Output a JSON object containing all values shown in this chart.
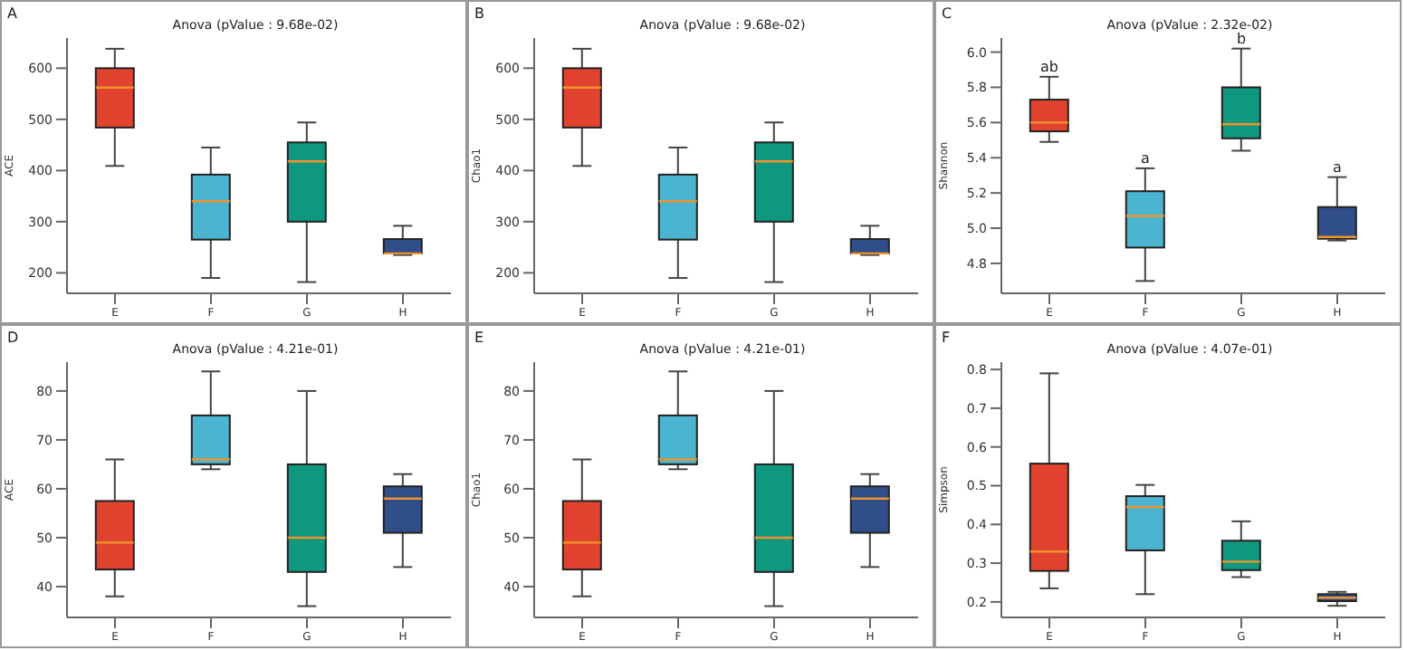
{
  "chart_data": [
    {
      "type": "box",
      "title": "Anova (pValue : 9.68e-02)",
      "annotations": [
        "A"
      ],
      "ylabel": "ACE",
      "categories": [
        "E",
        "F",
        "G",
        "H"
      ],
      "colors": [
        "#e2432e",
        "#4bb4d0",
        "#10977f",
        "#2f4e8a"
      ],
      "ylim": [
        160,
        659
      ],
      "yticks": [
        200,
        300,
        400,
        500,
        600
      ],
      "grid": false,
      "legend": false,
      "boxes": [
        {
          "low": 409,
          "q1": 484,
          "median": 562,
          "q3": 600,
          "high": 638
        },
        {
          "low": 190,
          "q1": 265,
          "median": 340,
          "q3": 392,
          "high": 445
        },
        {
          "low": 182,
          "q1": 300,
          "median": 418,
          "q3": 455,
          "high": 494
        },
        {
          "low": 235,
          "q1": 238,
          "median": 238,
          "q3": 266,
          "high": 292
        }
      ]
    },
    {
      "type": "box",
      "title": "Anova (pValue : 9.68e-02)",
      "annotations": [
        "B"
      ],
      "ylabel": "Chao1",
      "categories": [
        "E",
        "F",
        "G",
        "H"
      ],
      "colors": [
        "#e2432e",
        "#4bb4d0",
        "#10977f",
        "#2f4e8a"
      ],
      "ylim": [
        160,
        659
      ],
      "yticks": [
        200,
        300,
        400,
        500,
        600
      ],
      "grid": false,
      "legend": false,
      "boxes": [
        {
          "low": 409,
          "q1": 484,
          "median": 562,
          "q3": 600,
          "high": 638
        },
        {
          "low": 190,
          "q1": 265,
          "median": 340,
          "q3": 392,
          "high": 445
        },
        {
          "low": 182,
          "q1": 300,
          "median": 418,
          "q3": 455,
          "high": 494
        },
        {
          "low": 235,
          "q1": 238,
          "median": 238,
          "q3": 266,
          "high": 292
        }
      ]
    },
    {
      "type": "box",
      "title": "Anova (pValue : 2.32e-02)",
      "annotations": [
        "C",
        {
          "text": "ab",
          "x": "E",
          "y": 5.86
        },
        {
          "text": "a",
          "x": "F",
          "y": 5.34
        },
        {
          "text": "b",
          "x": "G",
          "y": 6.02
        },
        {
          "text": "a",
          "x": "H",
          "y": 5.29
        }
      ],
      "ylabel": "Shannon",
      "categories": [
        "E",
        "F",
        "G",
        "H"
      ],
      "colors": [
        "#e2432e",
        "#4bb4d0",
        "#10977f",
        "#2f4e8a"
      ],
      "ylim": [
        4.63,
        6.08
      ],
      "yticks": [
        {
          "value": 4.8,
          "label": "4.8"
        },
        {
          "value": 5.0,
          "label": "5.0"
        },
        {
          "value": 5.2,
          "label": "5.2"
        },
        {
          "value": 5.4,
          "label": "5.4"
        },
        {
          "value": 5.6,
          "label": "5.6"
        },
        {
          "value": 5.8,
          "label": "5.8"
        },
        {
          "value": 6.0,
          "label": "6.0"
        }
      ],
      "grid": false,
      "legend": false,
      "boxes": [
        {
          "low": 5.49,
          "q1": 5.55,
          "median": 5.6,
          "q3": 5.73,
          "high": 5.86
        },
        {
          "low": 4.7,
          "q1": 4.89,
          "median": 5.07,
          "q3": 5.21,
          "high": 5.34
        },
        {
          "low": 5.44,
          "q1": 5.51,
          "median": 5.59,
          "q3": 5.8,
          "high": 6.02
        },
        {
          "low": 4.93,
          "q1": 4.94,
          "median": 4.95,
          "q3": 5.12,
          "high": 5.29
        }
      ]
    },
    {
      "type": "box",
      "title": "Anova (pValue : 4.21e-01)",
      "annotations": [
        "D"
      ],
      "ylabel": "ACE",
      "categories": [
        "E",
        "F",
        "G",
        "H"
      ],
      "colors": [
        "#e2432e",
        "#4bb4d0",
        "#10977f",
        "#2f4e8a"
      ],
      "ylim": [
        33.7,
        85.9
      ],
      "yticks": [
        40,
        50,
        60,
        70,
        80
      ],
      "grid": false,
      "legend": false,
      "boxes": [
        {
          "low": 38,
          "q1": 43.5,
          "median": 49,
          "q3": 57.5,
          "high": 66
        },
        {
          "low": 64,
          "q1": 65,
          "median": 66,
          "q3": 75,
          "high": 84
        },
        {
          "low": 36,
          "q1": 43,
          "median": 50,
          "q3": 65,
          "high": 80
        },
        {
          "low": 44,
          "q1": 51,
          "median": 58,
          "q3": 60.5,
          "high": 63
        }
      ]
    },
    {
      "type": "box",
      "title": "Anova (pValue : 4.21e-01)",
      "annotations": [
        "E"
      ],
      "ylabel": "Chao1",
      "categories": [
        "E",
        "F",
        "G",
        "H"
      ],
      "colors": [
        "#e2432e",
        "#4bb4d0",
        "#10977f",
        "#2f4e8a"
      ],
      "ylim": [
        33.7,
        85.9
      ],
      "yticks": [
        40,
        50,
        60,
        70,
        80
      ],
      "grid": false,
      "legend": false,
      "boxes": [
        {
          "low": 38,
          "q1": 43.5,
          "median": 49,
          "q3": 57.5,
          "high": 66
        },
        {
          "low": 64,
          "q1": 65,
          "median": 66,
          "q3": 75,
          "high": 84
        },
        {
          "low": 36,
          "q1": 43,
          "median": 50,
          "q3": 65,
          "high": 80
        },
        {
          "low": 44,
          "q1": 51,
          "median": 58,
          "q3": 60.5,
          "high": 63
        }
      ]
    },
    {
      "type": "box",
      "title": "Anova (pValue : 4.07e-01)",
      "annotations": [
        "F"
      ],
      "ylabel": "Simpson",
      "categories": [
        "E",
        "F",
        "G",
        "H"
      ],
      "colors": [
        "#e2432e",
        "#4bb4d0",
        "#10977f",
        "#2f4e8a"
      ],
      "ylim": [
        0.16,
        0.819
      ],
      "yticks": [
        0.2,
        0.3,
        0.4,
        0.5,
        0.6,
        0.7,
        0.8
      ],
      "grid": false,
      "legend": false,
      "boxes": [
        {
          "low": 0.235,
          "q1": 0.28,
          "median": 0.33,
          "q3": 0.557,
          "high": 0.79
        },
        {
          "low": 0.22,
          "q1": 0.333,
          "median": 0.445,
          "q3": 0.473,
          "high": 0.502
        },
        {
          "low": 0.264,
          "q1": 0.282,
          "median": 0.304,
          "q3": 0.358,
          "high": 0.408
        },
        {
          "low": 0.19,
          "q1": 0.202,
          "median": 0.211,
          "q3": 0.22,
          "high": 0.226
        }
      ]
    }
  ]
}
